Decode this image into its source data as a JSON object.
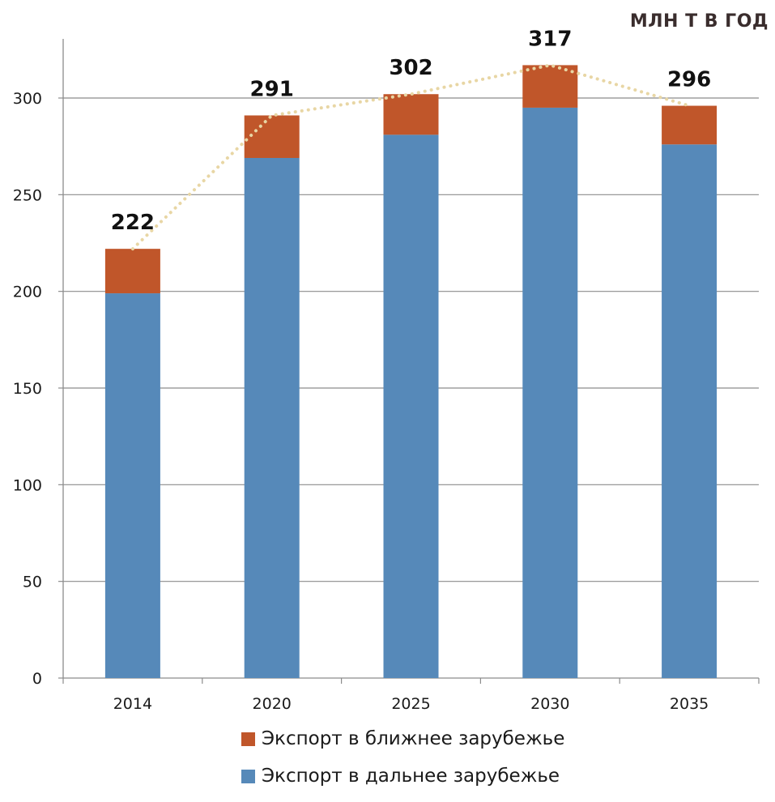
{
  "unit_label": "МЛН Т В ГОД",
  "colors": {
    "near": "#c0562a",
    "far": "#5689b9",
    "trend": "#e8d6a4",
    "grid": "#8c8c8c"
  },
  "chart_data": {
    "type": "bar",
    "stacked": true,
    "categories": [
      "2014",
      "2020",
      "2025",
      "2030",
      "2035"
    ],
    "series": [
      {
        "name": "Экспорт в дальнее зарубежье",
        "values": [
          199,
          269,
          281,
          295,
          276
        ]
      },
      {
        "name": "Экспорт в ближнее зарубежье",
        "values": [
          23,
          22,
          21,
          22,
          20
        ]
      }
    ],
    "totals": [
      222,
      291,
      302,
      317,
      296
    ],
    "total_labels": [
      "222",
      "291",
      "302",
      "317",
      "296"
    ],
    "y_ticks": [
      "0",
      "50",
      "100",
      "150",
      "200",
      "250",
      "300"
    ],
    "ylim": [
      0,
      300
    ],
    "grid": true,
    "trend_line": true,
    "legend_position": "bottom"
  },
  "legend": {
    "items": [
      {
        "label": "Экспорт в ближнее зарубежье",
        "color_key": "near"
      },
      {
        "label": "Экспорт в дальнее зарубежье",
        "color_key": "far"
      }
    ]
  }
}
